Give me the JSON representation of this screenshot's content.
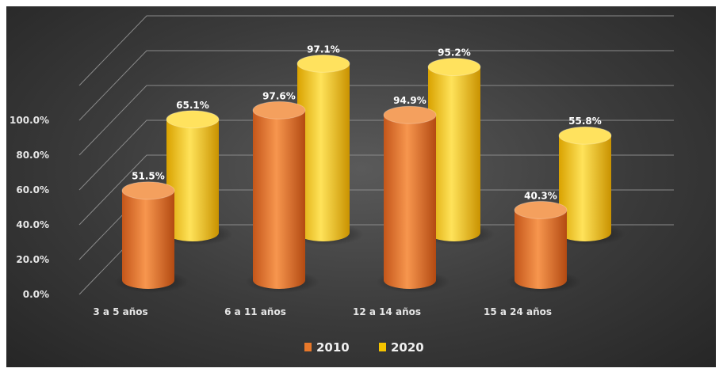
{
  "chart_data": {
    "type": "bar",
    "categories": [
      "3 a 5 años",
      "6 a 11 años",
      "12 a 14 años",
      "15 a 24 años"
    ],
    "series": [
      {
        "name": "2010",
        "values": [
          51.5,
          97.6,
          94.9,
          40.3
        ],
        "labels": [
          "51.5%",
          "97.6%",
          "94.9%",
          "40.3%"
        ],
        "color": "#e8782a"
      },
      {
        "name": "2020",
        "values": [
          65.1,
          97.1,
          95.2,
          55.8
        ],
        "labels": [
          "65.1%",
          "97.1%",
          "95.2%",
          "55.8%"
        ],
        "color": "#f5c400"
      }
    ],
    "y_ticks": [
      "0.0%",
      "20.0%",
      "40.0%",
      "60.0%",
      "80.0%",
      "100.0%"
    ],
    "ylim": [
      0,
      100
    ],
    "legend_position": "bottom",
    "grid": true,
    "bar_shape": "cylinder",
    "background": "#3c3c3c"
  }
}
